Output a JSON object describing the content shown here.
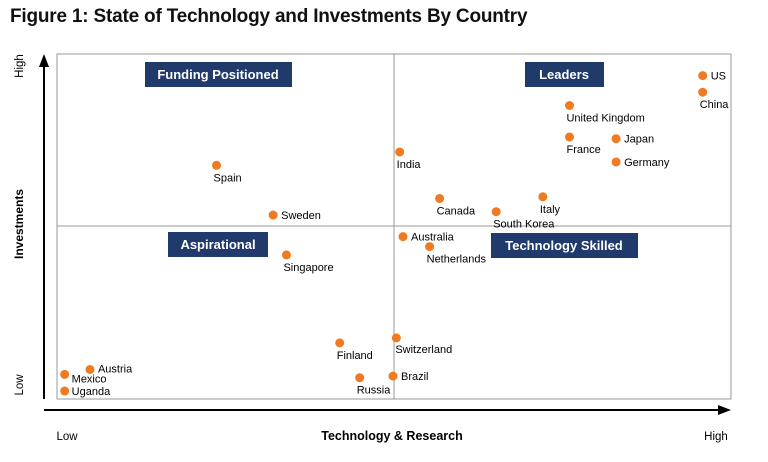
{
  "figure": {
    "title": "Figure 1: State of Technology and Investments By Country"
  },
  "chart_data": {
    "type": "scatter",
    "title": "Figure 1: State of Technology and Investments By Country",
    "xlabel": "Technology & Research",
    "ylabel": "Investments",
    "x_tick_labels": [
      "Low",
      "High"
    ],
    "y_tick_labels": [
      "Low",
      "High"
    ],
    "xlim": [
      0,
      100
    ],
    "ylim": [
      0,
      100
    ],
    "grid": false,
    "quadrants": {
      "top_left": "Funding Positioned",
      "top_right": "Leaders",
      "bottom_left": "Aspirational",
      "bottom_right": "Technology Skilled"
    },
    "point_color": "#f07a22",
    "label_box_color": "#1f3a6b",
    "points": [
      {
        "label": "US",
        "x": 96.5,
        "y": 96.5
      },
      {
        "label": "China",
        "x": 96.5,
        "y": 91.5
      },
      {
        "label": "United Kingdom",
        "x": 76.5,
        "y": 87.5
      },
      {
        "label": "Japan",
        "x": 83.5,
        "y": 77.5
      },
      {
        "label": "France",
        "x": 76.5,
        "y": 78
      },
      {
        "label": "Germany",
        "x": 83.5,
        "y": 70.5
      },
      {
        "label": "India",
        "x": 51,
        "y": 73.5
      },
      {
        "label": "Spain",
        "x": 23.5,
        "y": 69.5
      },
      {
        "label": "Canada",
        "x": 57,
        "y": 59.5
      },
      {
        "label": "Italy",
        "x": 72.5,
        "y": 60
      },
      {
        "label": "South Korea",
        "x": 65.5,
        "y": 55.5
      },
      {
        "label": "Sweden",
        "x": 32,
        "y": 54.5
      },
      {
        "label": "Australia",
        "x": 51.5,
        "y": 48
      },
      {
        "label": "Netherlands",
        "x": 55.5,
        "y": 45
      },
      {
        "label": "Singapore",
        "x": 34,
        "y": 42.5
      },
      {
        "label": "Finland",
        "x": 42,
        "y": 16
      },
      {
        "label": "Switzerland",
        "x": 50.5,
        "y": 17.5
      },
      {
        "label": "Brazil",
        "x": 50,
        "y": 6
      },
      {
        "label": "Russia",
        "x": 45,
        "y": 5.5
      },
      {
        "label": "Austria",
        "x": 4.5,
        "y": 8
      },
      {
        "label": "Mexico",
        "x": 0.7,
        "y": 6.5
      },
      {
        "label": "Uganda",
        "x": 0.7,
        "y": 1.5
      }
    ]
  }
}
